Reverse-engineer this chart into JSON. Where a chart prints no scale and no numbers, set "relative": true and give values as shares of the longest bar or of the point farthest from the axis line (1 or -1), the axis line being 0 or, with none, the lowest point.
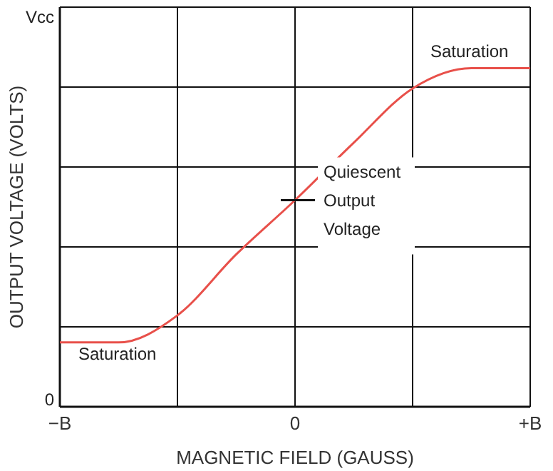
{
  "chart_data": {
    "type": "line",
    "relative": true,
    "xlabel": "MAGNETIC FIELD (GAUSS)",
    "ylabel": "OUTPUT VOLTAGE (VOLTS)",
    "categories": [
      "−B",
      null,
      null,
      null,
      "0",
      null,
      null,
      null,
      "+B"
    ],
    "series": [
      {
        "color": "#e8504a",
        "values": [
          0.19,
          0.19,
          0.27,
          0.45,
          0.61,
          0.78,
          0.94,
          1,
          1
        ]
      }
    ],
    "grid": true,
    "marker": "none",
    "line_style": "solid",
    "annotations": [
      "Saturation",
      "Saturation",
      {
        "text": "Quiescent Output Voltage",
        "x": "0",
        "y": 0.61
      },
      "Vcc",
      "0"
    ]
  }
}
